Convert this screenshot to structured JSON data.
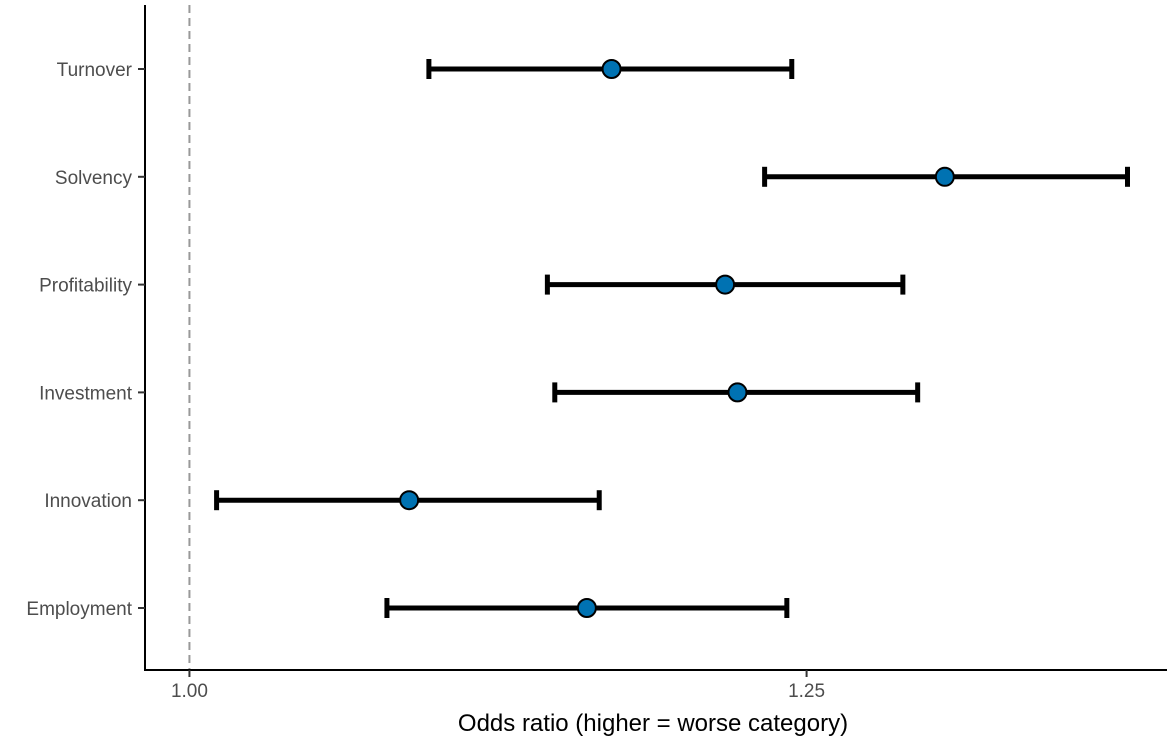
{
  "chart_data": {
    "type": "forest",
    "xlabel": "Odds ratio (higher = worse category)",
    "ylabel": "",
    "x_ticks": [
      1.0,
      1.25
    ],
    "x_tick_labels": [
      "1.00",
      "1.25"
    ],
    "xlim": [
      0.982,
      1.396
    ],
    "reference_line": 1.0,
    "grid": false,
    "categories": [
      "Employment",
      "Innovation",
      "Investment",
      "Profitability",
      "Solvency",
      "Turnover"
    ],
    "estimates": [
      {
        "label": "Employment",
        "or": 1.161,
        "lower": 1.08,
        "upper": 1.242
      },
      {
        "label": "Innovation",
        "or": 1.089,
        "lower": 1.011,
        "upper": 1.166
      },
      {
        "label": "Investment",
        "or": 1.222,
        "lower": 1.148,
        "upper": 1.295
      },
      {
        "label": "Profitability",
        "or": 1.217,
        "lower": 1.145,
        "upper": 1.289
      },
      {
        "label": "Solvency",
        "or": 1.306,
        "lower": 1.233,
        "upper": 1.38
      },
      {
        "label": "Turnover",
        "or": 1.171,
        "lower": 1.097,
        "upper": 1.244
      }
    ],
    "point_color": "#0072B2",
    "line_color": "#000000",
    "reference_line_color": "#999999"
  }
}
